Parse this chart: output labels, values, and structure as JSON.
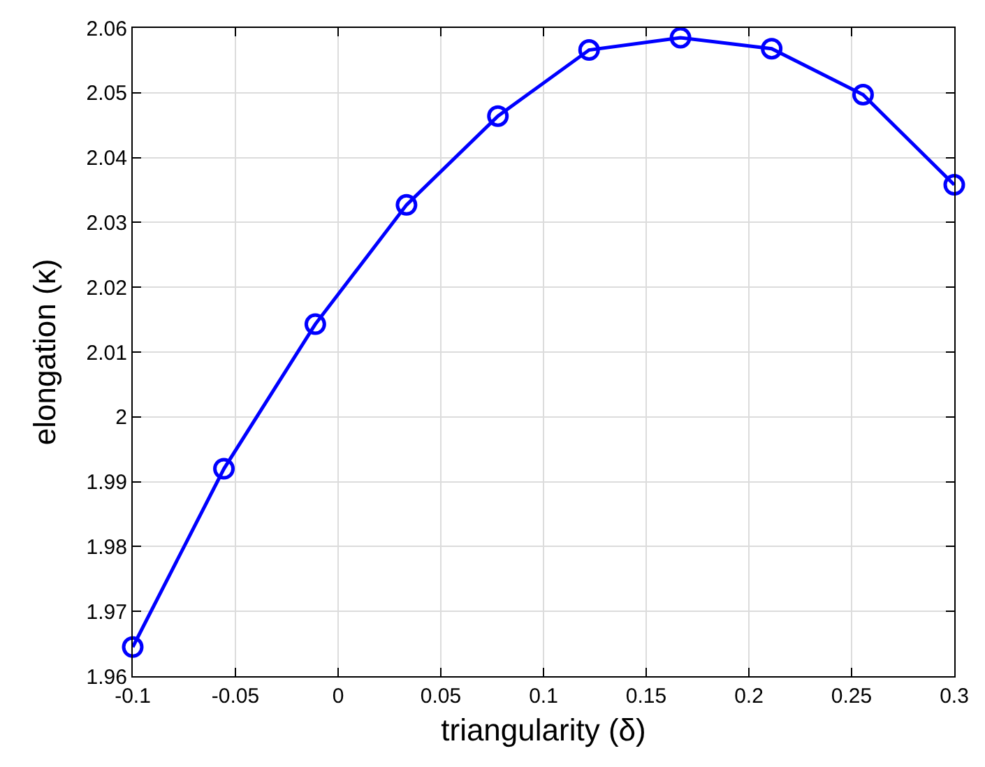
{
  "chart_data": {
    "type": "line",
    "xlabel": "triangularity (δ)",
    "ylabel": "elongation (κ)",
    "x": [
      -0.1,
      -0.0556,
      -0.0111,
      0.0333,
      0.0778,
      0.1222,
      0.1667,
      0.2111,
      0.2556,
      0.3
    ],
    "series": [
      {
        "color": "#0000ff",
        "values": [
          1.9645,
          1.992,
          2.0143,
          2.0327,
          2.0464,
          2.0566,
          2.0585,
          2.0568,
          2.0497,
          2.0358
        ]
      }
    ],
    "xlim": [
      -0.1,
      0.3
    ],
    "xticks": [
      -0.1,
      -0.05,
      0,
      0.05,
      0.1,
      0.15,
      0.2,
      0.25,
      0.3
    ],
    "ylim": [
      1.96,
      2.06
    ],
    "yticks": [
      1.96,
      1.97,
      1.98,
      1.99,
      2,
      2.01,
      2.02,
      2.03,
      2.04,
      2.05,
      2.06
    ],
    "grid": true,
    "marker": "circle",
    "line_style": "solid"
  }
}
